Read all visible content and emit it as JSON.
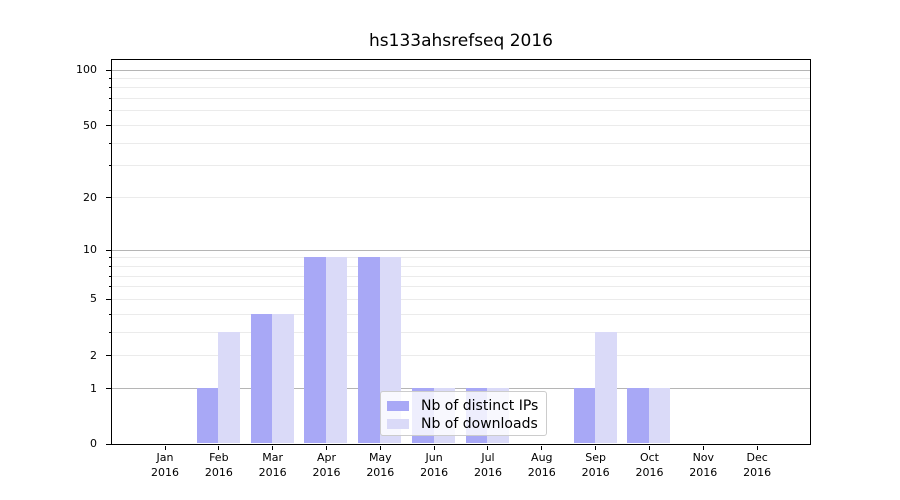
{
  "title": "hs133ahsrefseq 2016",
  "chart_data": {
    "type": "bar",
    "title": "hs133ahsrefseq 2016",
    "categories": [
      "Jan 2016",
      "Feb 2016",
      "Mar 2016",
      "Apr 2016",
      "May 2016",
      "Jun 2016",
      "Jul 2016",
      "Aug 2016",
      "Sep 2016",
      "Oct 2016",
      "Nov 2016",
      "Dec 2016"
    ],
    "series": [
      {
        "name": "Nb of distinct IPs",
        "color": "#a8a8f6",
        "values": [
          0,
          1,
          4,
          9,
          9,
          1,
          1,
          0,
          1,
          1,
          0,
          0
        ]
      },
      {
        "name": "Nb of downloads",
        "color": "#dadaf8",
        "values": [
          0,
          3,
          4,
          9,
          9,
          1,
          1,
          0,
          3,
          1,
          0,
          0
        ]
      }
    ],
    "yscale": "log1p",
    "ylim": [
      0,
      114
    ],
    "ytick_labels": [
      100,
      50,
      20,
      10,
      5,
      2,
      1,
      0
    ],
    "major_gridlines": [
      1,
      10,
      100
    ],
    "minor_gridlines": [
      2,
      3,
      4,
      5,
      6,
      7,
      8,
      9,
      20,
      30,
      40,
      50,
      60,
      70,
      80,
      90
    ],
    "grid": true,
    "legend_position": "lower center",
    "colors": {
      "major_grid": "#b5b5b5",
      "minor_grid": "#ebebeb",
      "axis": "#000000",
      "background": "#ffffff"
    }
  }
}
